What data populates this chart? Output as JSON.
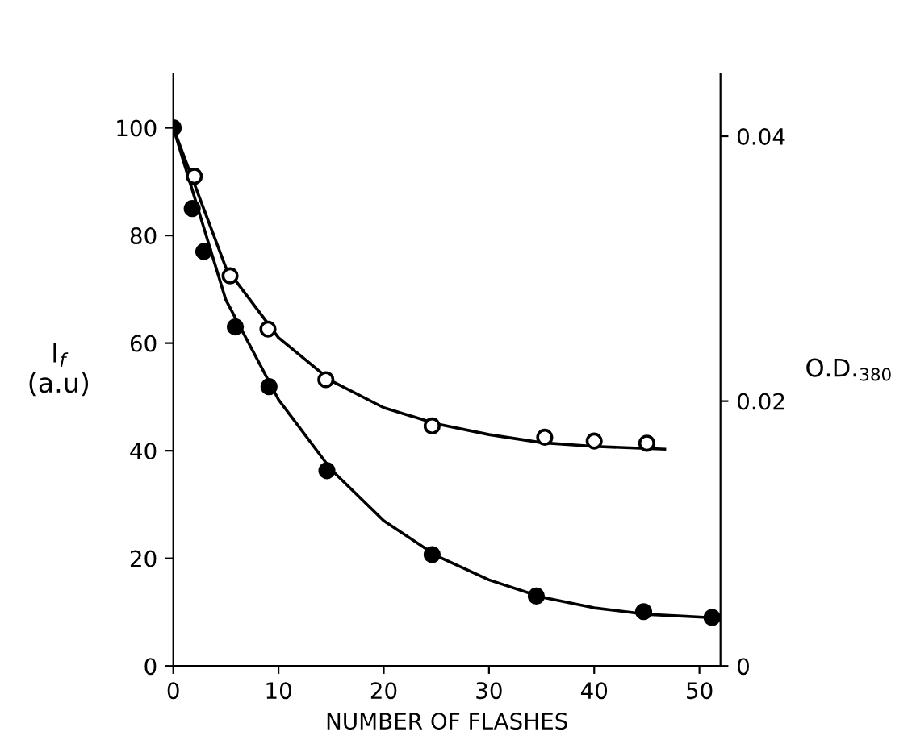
{
  "chart_data": {
    "type": "scatter",
    "xlabel": "NUMBER OF FLASHES",
    "ylabel": "I$_{f}$\n(a.u)",
    "y2label": "O.D.$_{380}$",
    "xlim": [
      0,
      52
    ],
    "xticks": [
      0,
      10,
      20,
      30,
      40,
      50
    ],
    "ylim": [
      0,
      110
    ],
    "yticks": [
      0,
      20,
      40,
      60,
      80,
      100
    ],
    "y2lim": [
      0,
      0.0447
    ],
    "y2ticks": [
      0,
      0.02,
      0.04
    ],
    "grid": false,
    "legend": false,
    "series": [
      {
        "type": "line",
        "color": "#000000",
        "marker": "none",
        "x": [
          0,
          5,
          10,
          15,
          20,
          25,
          30,
          35,
          40,
          46.7
        ],
        "values": [
          100,
          74,
          61,
          53,
          48,
          45,
          43,
          41.5,
          40.8,
          40.3
        ]
      },
      {
        "type": "line",
        "color": "#000000",
        "marker": "none",
        "x": [
          0,
          5,
          10,
          15,
          20,
          25,
          30,
          35,
          40,
          45,
          51
        ],
        "values": [
          100,
          68,
          49.5,
          36.5,
          27,
          20.5,
          16,
          12.8,
          10.8,
          9.6,
          9
        ]
      },
      {
        "color": "#ffffff",
        "marker": "circle",
        "x": [
          2.0,
          5.4,
          9.0,
          14.5,
          24.6,
          35.3,
          40,
          45.0
        ],
        "values": [
          91,
          72.5,
          62.6,
          53.2,
          44.6,
          42.5,
          41.8,
          41.4
        ]
      },
      {
        "color": "#000000",
        "marker": "circle",
        "x": [
          0,
          1.8,
          2.9,
          5.9,
          9.1,
          14.6,
          24.6,
          34.5,
          44.7,
          51.2
        ],
        "values": [
          100,
          85,
          77,
          63,
          51.9,
          36.3,
          20.7,
          13.0,
          10.1,
          9.0
        ]
      }
    ]
  }
}
